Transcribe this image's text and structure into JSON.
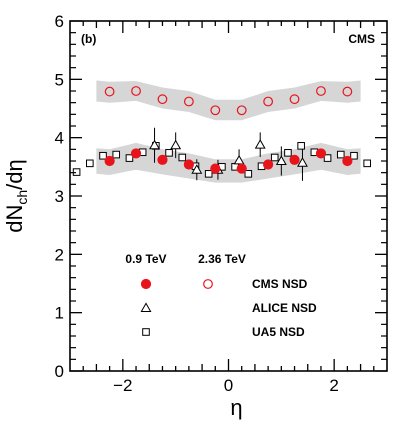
{
  "chart_data": {
    "type": "scatter",
    "panel_label": "(b)",
    "experiment_label": "CMS",
    "xlabel": "η",
    "ylabel": "dNₑₕ/dη",
    "ylabel_main": "dN",
    "ylabel_sub": "ch",
    "ylabel_tail": "/dη",
    "xlim": [
      -3,
      3
    ],
    "ylim": [
      0,
      6
    ],
    "x_ticks": [
      -2,
      0,
      2
    ],
    "x_tick_labels": [
      "−2",
      "0",
      "2"
    ],
    "y_ticks": [
      0,
      1,
      2,
      3,
      4,
      5,
      6
    ],
    "y_tick_labels": [
      "0",
      "1",
      "2",
      "3",
      "4",
      "5",
      "6"
    ],
    "legend": {
      "energy_headers": [
        "0.9 TeV",
        "2.36 TeV"
      ],
      "entries": [
        "CMS NSD",
        "ALICE NSD",
        "UA5 NSD"
      ]
    },
    "bands": [
      {
        "name": "CMS 2.36 TeV systematic band",
        "x": [
          -2.5,
          -2.25,
          -1.75,
          -1.25,
          -0.75,
          -0.25,
          0.25,
          0.75,
          1.25,
          1.75,
          2.25,
          2.5
        ],
        "upper": [
          4.98,
          4.96,
          4.97,
          4.86,
          4.8,
          4.65,
          4.65,
          4.8,
          4.86,
          4.97,
          4.96,
          4.98
        ],
        "lower": [
          4.62,
          4.6,
          4.63,
          4.5,
          4.44,
          4.3,
          4.3,
          4.44,
          4.5,
          4.63,
          4.6,
          4.62
        ]
      },
      {
        "name": "CMS 0.9 TeV systematic band",
        "x": [
          -2.5,
          -2.25,
          -1.75,
          -1.25,
          -0.75,
          -0.25,
          0.25,
          0.75,
          1.25,
          1.75,
          2.25,
          2.5
        ],
        "upper": [
          3.82,
          3.8,
          3.91,
          3.8,
          3.73,
          3.63,
          3.63,
          3.73,
          3.8,
          3.91,
          3.8,
          3.82
        ],
        "lower": [
          3.38,
          3.36,
          3.45,
          3.37,
          3.3,
          3.23,
          3.23,
          3.3,
          3.37,
          3.45,
          3.36,
          3.38
        ]
      }
    ],
    "series": [
      {
        "name": "CMS NSD",
        "energy": "0.9 TeV",
        "marker": "filled-circle",
        "color": "#e8141c",
        "x": [
          -2.25,
          -1.75,
          -1.25,
          -0.75,
          -0.25,
          0.25,
          0.75,
          1.25,
          1.75,
          2.25
        ],
        "y": [
          3.6,
          3.73,
          3.62,
          3.54,
          3.47,
          3.47,
          3.54,
          3.62,
          3.73,
          3.6
        ]
      },
      {
        "name": "CMS NSD",
        "energy": "2.36 TeV",
        "marker": "open-circle",
        "color": "#e8141c",
        "x": [
          -2.25,
          -1.75,
          -1.25,
          -0.75,
          -0.25,
          0.25,
          0.75,
          1.25,
          1.75,
          2.25
        ],
        "y": [
          4.79,
          4.8,
          4.66,
          4.62,
          4.47,
          4.47,
          4.62,
          4.66,
          4.8,
          4.79
        ]
      },
      {
        "name": "ALICE NSD",
        "energy": "0.9 TeV",
        "marker": "open-triangle",
        "color": "#000000",
        "x": [
          -1.4,
          -1.0,
          -0.6,
          -0.2,
          0.2,
          0.6,
          1.0,
          1.4
        ],
        "y": [
          3.87,
          3.87,
          3.45,
          3.45,
          3.61,
          3.88,
          3.6,
          3.57
        ],
        "err": [
          0.3,
          0.22,
          0.18,
          0.17,
          0.19,
          0.21,
          0.25,
          0.31
        ]
      },
      {
        "name": "UA5 NSD",
        "energy": "0.9 TeV",
        "marker": "open-square",
        "color": "#000000",
        "x": [
          -2.875,
          -2.625,
          -2.375,
          -2.125,
          -1.875,
          -1.625,
          -1.375,
          -1.125,
          -0.875,
          -0.625,
          -0.375,
          -0.125,
          0.125,
          0.375,
          0.625,
          0.875,
          1.125,
          1.375,
          1.625,
          1.875,
          2.125,
          2.375,
          2.625
        ],
        "y": [
          3.41,
          3.56,
          3.69,
          3.71,
          3.65,
          3.75,
          3.86,
          3.74,
          3.66,
          3.51,
          3.38,
          3.5,
          3.5,
          3.38,
          3.51,
          3.66,
          3.74,
          3.86,
          3.75,
          3.65,
          3.71,
          3.69,
          3.56
        ],
        "err": [
          0.05,
          0.05,
          0.05,
          0.05,
          0.05,
          0.05,
          0.05,
          0.05,
          0.05,
          0.05,
          0.05,
          0.05,
          0.05,
          0.05,
          0.05,
          0.05,
          0.05,
          0.05,
          0.05,
          0.05,
          0.05,
          0.05,
          0.05
        ]
      }
    ],
    "colors": {
      "cms": "#e8141c",
      "band": "#d6d6d6",
      "axis": "#000000"
    }
  }
}
